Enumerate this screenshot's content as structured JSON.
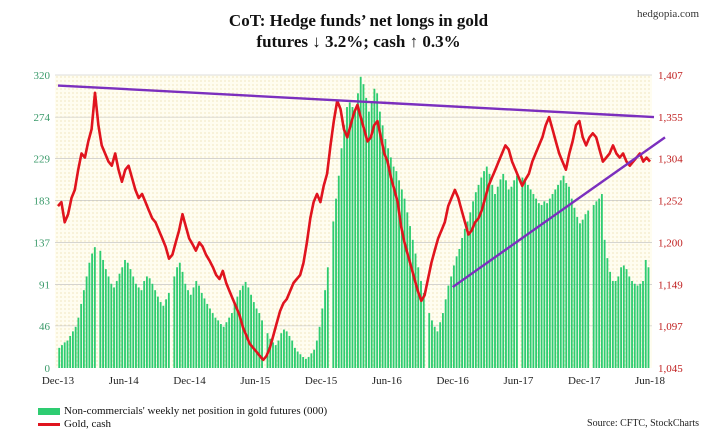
{
  "watermark": "hedgopia.com",
  "title_line1": "CoT: Hedge funds’ net longs in gold",
  "title_line2": "futures ↓ 3.2%; cash ↑ 0.3%",
  "source": "Source: CFTC, StockCharts",
  "chart_data": {
    "type": "bar+line",
    "left_axis": {
      "ticks": [
        0,
        46,
        91,
        137,
        183,
        229,
        274,
        320
      ],
      "range": [
        0,
        320
      ]
    },
    "right_axis": {
      "ticks": [
        "1,045",
        "1,097",
        "1,149",
        "1,200",
        "1,252",
        "1,304",
        "1,355",
        "1,407"
      ],
      "range": [
        1045,
        1407
      ]
    },
    "x_ticks": [
      "Dec-13",
      "Jun-14",
      "Dec-14",
      "Jun-15",
      "Dec-15",
      "Jun-16",
      "Dec-16",
      "Jun-17",
      "Dec-17",
      "Jun-18"
    ],
    "legend": [
      {
        "label": "Non-commercials' weekly net position in gold futures (000)",
        "color": "#2ecc71"
      },
      {
        "label": "Gold, cash",
        "color": "#e0141e"
      }
    ],
    "bar_series": {
      "name": "Non-commercials' weekly net position in gold futures (000)",
      "values": [
        22,
        25,
        28,
        30,
        35,
        40,
        45,
        55,
        70,
        85,
        100,
        115,
        125,
        132,
        138,
        128,
        118,
        108,
        100,
        92,
        88,
        95,
        103,
        110,
        118,
        115,
        108,
        100,
        92,
        88,
        85,
        95,
        100,
        98,
        92,
        85,
        78,
        72,
        68,
        75,
        82,
        95,
        100,
        110,
        115,
        105,
        92,
        85,
        80,
        88,
        95,
        90,
        82,
        76,
        70,
        65,
        60,
        55,
        52,
        48,
        45,
        50,
        55,
        60,
        70,
        78,
        85,
        90,
        94,
        88,
        80,
        72,
        65,
        60,
        52,
        45,
        38,
        32,
        28,
        25,
        30,
        38,
        42,
        40,
        35,
        30,
        22,
        18,
        15,
        12,
        10,
        12,
        16,
        20,
        30,
        45,
        65,
        85,
        110,
        135,
        160,
        185,
        210,
        240,
        265,
        285,
        290,
        285,
        280,
        300,
        318,
        310,
        295,
        280,
        290,
        305,
        300,
        280,
        265,
        250,
        240,
        230,
        220,
        215,
        205,
        195,
        185,
        170,
        155,
        140,
        125,
        110,
        95,
        82,
        70,
        60,
        52,
        45,
        40,
        50,
        60,
        75,
        90,
        100,
        112,
        122,
        130,
        142,
        152,
        160,
        170,
        182,
        192,
        200,
        208,
        215,
        220,
        212,
        200,
        190,
        198,
        206,
        212,
        205,
        195,
        198,
        205,
        210,
        212,
        208,
        204,
        200,
        195,
        190,
        185,
        180,
        178,
        182,
        180,
        185,
        190,
        195,
        200,
        205,
        210,
        202,
        198,
        185,
        175,
        165,
        158,
        162,
        168,
        172,
        175,
        178,
        182,
        185,
        190,
        140,
        120,
        105,
        95,
        95,
        100,
        110,
        112,
        108,
        100,
        95,
        92,
        90,
        92,
        95,
        118,
        110
      ],
      "gaps": [
        14,
        41,
        75,
        99,
        134,
        168,
        194
      ]
    },
    "line_series": {
      "name": "Gold, cash",
      "values": [
        1245,
        1250,
        1225,
        1235,
        1255,
        1265,
        1290,
        1310,
        1305,
        1325,
        1340,
        1385,
        1345,
        1320,
        1310,
        1300,
        1295,
        1310,
        1290,
        1275,
        1290,
        1295,
        1280,
        1265,
        1255,
        1260,
        1250,
        1240,
        1230,
        1225,
        1215,
        1205,
        1195,
        1180,
        1185,
        1200,
        1215,
        1235,
        1220,
        1205,
        1198,
        1190,
        1200,
        1195,
        1185,
        1178,
        1170,
        1160,
        1155,
        1165,
        1150,
        1140,
        1130,
        1120,
        1110,
        1095,
        1085,
        1075,
        1070,
        1065,
        1060,
        1055,
        1060,
        1070,
        1085,
        1100,
        1115,
        1125,
        1130,
        1140,
        1150,
        1155,
        1160,
        1175,
        1200,
        1230,
        1250,
        1260,
        1250,
        1270,
        1285,
        1320,
        1350,
        1375,
        1365,
        1340,
        1330,
        1345,
        1360,
        1370,
        1355,
        1340,
        1325,
        1330,
        1345,
        1350,
        1330,
        1310,
        1300,
        1280,
        1265,
        1250,
        1220,
        1200,
        1185,
        1170,
        1155,
        1140,
        1128,
        1135,
        1155,
        1175,
        1190,
        1205,
        1215,
        1225,
        1245,
        1255,
        1265,
        1255,
        1240,
        1225,
        1210,
        1215,
        1225,
        1230,
        1240,
        1255,
        1270,
        1280,
        1290,
        1300,
        1310,
        1320,
        1315,
        1300,
        1290,
        1280,
        1270,
        1278,
        1285,
        1300,
        1310,
        1320,
        1330,
        1345,
        1355,
        1340,
        1325,
        1310,
        1300,
        1290,
        1310,
        1325,
        1345,
        1350,
        1330,
        1320,
        1330,
        1335,
        1330,
        1315,
        1300,
        1305,
        1310,
        1320,
        1310,
        1305,
        1310,
        1300,
        1295,
        1300,
        1305,
        1310,
        1300,
        1305,
        1300
      ]
    },
    "trendlines": [
      {
        "from": [
          "Dec-13",
          1394
        ],
        "to": [
          "Jun-18",
          1355
        ]
      },
      {
        "from": [
          "Dec-16",
          1145
        ],
        "to": [
          "Jun-18",
          1320
        ]
      }
    ]
  }
}
